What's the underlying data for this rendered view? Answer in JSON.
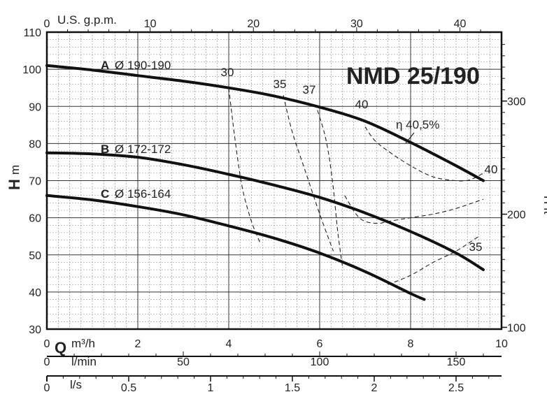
{
  "chart_data": {
    "type": "line",
    "title": "NMD 25/190",
    "y_left": {
      "label_main": "H",
      "label_unit": "m",
      "lim": [
        30,
        110
      ],
      "ticks": [
        30,
        40,
        50,
        60,
        70,
        80,
        90,
        100,
        110
      ]
    },
    "y_right": {
      "label": "H ft",
      "ticks": [
        100,
        200,
        300
      ]
    },
    "x_m3h": {
      "label_main": "Q",
      "label_unit": "m³/h",
      "lim": [
        0,
        10
      ],
      "ticks": [
        0,
        2,
        4,
        6,
        8,
        10
      ]
    },
    "x_gpm": {
      "label": "U.S. g.p.m.",
      "ticks": [
        0,
        10,
        20,
        30,
        40
      ]
    },
    "x_lmin": {
      "label": "l/min",
      "ticks": [
        0,
        50,
        100,
        150
      ]
    },
    "x_ls": {
      "label": "l/s",
      "ticks": [
        "0",
        "0.5",
        "1",
        "1.5",
        "2",
        "2.5"
      ]
    },
    "grid": true,
    "series": [
      {
        "name": "A",
        "impeller": "Ø 190-190",
        "x": [
          0,
          1,
          2,
          3,
          4,
          5,
          6,
          7,
          8,
          9,
          9.6
        ],
        "y": [
          101,
          99.8,
          98.3,
          96.8,
          95,
          92.8,
          89.8,
          86,
          80.3,
          74,
          70
        ]
      },
      {
        "name": "B",
        "impeller": "Ø 172-172",
        "x": [
          0,
          1,
          2,
          3,
          4,
          5,
          6,
          7,
          8,
          9,
          9.6
        ],
        "y": [
          77.5,
          77.2,
          76.3,
          74.3,
          71.7,
          68.8,
          65.5,
          61.3,
          56.3,
          50.5,
          46
        ]
      },
      {
        "name": "C",
        "impeller": "Ø 156-164",
        "x": [
          0,
          1,
          2,
          3,
          4,
          5,
          6,
          7,
          8,
          8.3
        ],
        "y": [
          66,
          64.8,
          63,
          60.8,
          57.8,
          54.5,
          50.5,
          45.5,
          39.6,
          38
        ]
      }
    ],
    "efficiency_lines": [
      {
        "label": "30",
        "x": [
          4.0,
          4.15,
          4.3,
          4.5,
          4.7
        ],
        "y": [
          95,
          80,
          68,
          59,
          53
        ]
      },
      {
        "label": "35",
        "x": [
          5.2,
          5.4,
          5.7,
          6.0,
          6.3
        ],
        "y": [
          93,
          83,
          72,
          61,
          51
        ]
      },
      {
        "label": "37",
        "x": [
          5.95,
          6.1,
          6.2,
          6.3,
          6.4,
          6.5
        ],
        "y": [
          89,
          83,
          77,
          68,
          56,
          47
        ]
      },
      {
        "label": "40",
        "x": [
          7.0,
          7.2,
          7.5,
          8.0,
          8.5,
          9.0,
          9.3,
          9.6
        ],
        "y": [
          84.5,
          81,
          78,
          74,
          71,
          70,
          70.2,
          72
        ]
      },
      {
        "label": "40",
        "x": [
          6.55,
          6.8,
          7.0,
          7.3,
          7.5,
          8.0,
          8.5,
          9.0,
          9.6
        ],
        "y": [
          66,
          61,
          59,
          58.5,
          59,
          60,
          61,
          62.5,
          65
        ]
      },
      {
        "label": "35",
        "x": [
          7.5,
          8.0,
          8.5,
          9.0,
          9.5
        ],
        "y": [
          42,
          44.5,
          48,
          51,
          55
        ]
      }
    ],
    "annotations": [
      {
        "text": "η 40,5%",
        "x": 8.2,
        "y": 86.5
      }
    ]
  }
}
